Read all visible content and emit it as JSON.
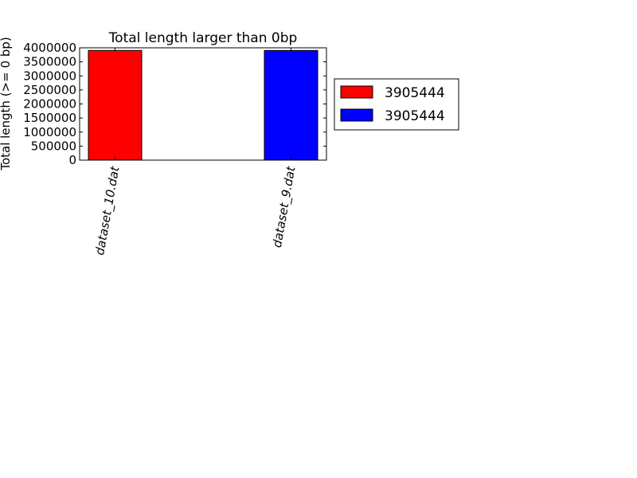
{
  "chart_data": {
    "type": "bar",
    "title": "Total length larger than 0bp",
    "xlabel": "",
    "ylabel": "Total length (>= 0 bp)",
    "categories": [
      "dataset_10.dat",
      "dataset_9.dat"
    ],
    "values": [
      3905444,
      3905444
    ],
    "colors": [
      "#ff0000",
      "#0000ff"
    ],
    "ylim": [
      0,
      4000000
    ],
    "yticks": [
      "0",
      "500000",
      "1000000",
      "1500000",
      "2000000",
      "2500000",
      "3000000",
      "3500000",
      "4000000"
    ],
    "grid": false,
    "legend": {
      "placement": "outside-right",
      "entries": [
        {
          "label": "3905444",
          "color": "#ff0000"
        },
        {
          "label": "3905444",
          "color": "#0000ff"
        }
      ]
    }
  }
}
